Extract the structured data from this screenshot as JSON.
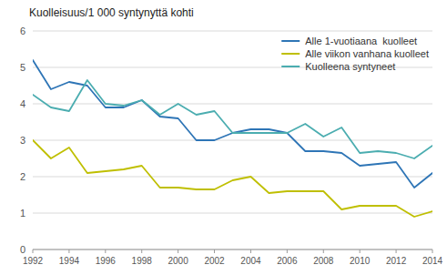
{
  "chart_data": {
    "type": "line",
    "title": "Kuolleisuus/1 000 syntynyttä kohti",
    "x": [
      1992,
      1993,
      1994,
      1995,
      1996,
      1997,
      1998,
      1999,
      2000,
      2001,
      2002,
      2003,
      2004,
      2005,
      2006,
      2007,
      2008,
      2009,
      2010,
      2011,
      2012,
      2013,
      2014
    ],
    "series": [
      {
        "name": "Alle 1-vuotiaana  kuolleet",
        "color": "#2E75B6",
        "values": [
          5.2,
          4.4,
          4.6,
          4.5,
          3.9,
          3.9,
          4.1,
          3.65,
          3.6,
          3.0,
          3.0,
          3.2,
          3.3,
          3.3,
          3.2,
          2.7,
          2.7,
          2.65,
          2.3,
          2.35,
          2.4,
          1.7,
          2.1
        ]
      },
      {
        "name": "Alle viikon vanhana kuolleet",
        "color": "#BFBF00",
        "values": [
          3.0,
          2.5,
          2.8,
          2.1,
          2.15,
          2.2,
          2.3,
          1.7,
          1.7,
          1.65,
          1.65,
          1.9,
          2.0,
          1.55,
          1.6,
          1.6,
          1.6,
          1.1,
          1.2,
          1.2,
          1.2,
          0.9,
          1.05
        ]
      },
      {
        "name": "Kuolleena syntyneet",
        "color": "#4BADB0",
        "values": [
          4.25,
          3.9,
          3.8,
          4.65,
          4.0,
          3.95,
          4.1,
          3.7,
          4.0,
          3.7,
          3.8,
          3.2,
          3.2,
          3.2,
          3.2,
          3.45,
          3.1,
          3.35,
          2.65,
          2.7,
          2.65,
          2.5,
          2.85
        ]
      }
    ],
    "xlim": [
      1992,
      2014
    ],
    "xticks": [
      1992,
      1994,
      1996,
      1998,
      2000,
      2002,
      2004,
      2006,
      2008,
      2010,
      2012,
      2014
    ],
    "ylim": [
      0,
      6
    ],
    "yticks": [
      0,
      1,
      2,
      3,
      4,
      5,
      6
    ],
    "grid": true,
    "legend": "upper right"
  }
}
